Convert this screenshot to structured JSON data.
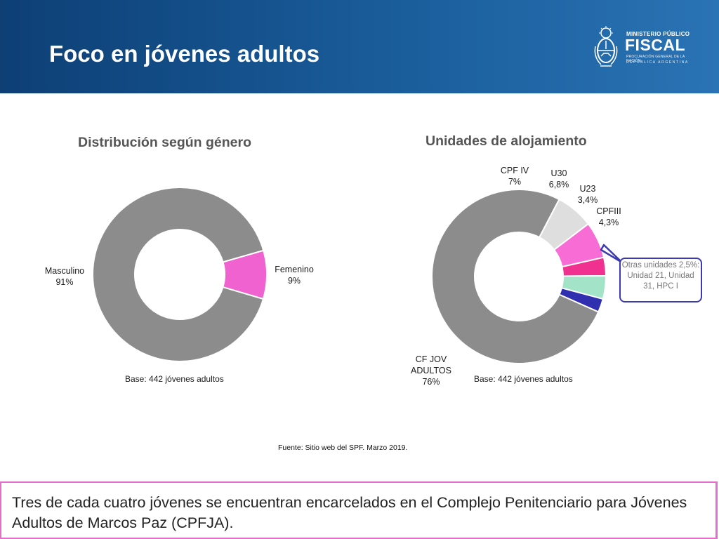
{
  "header": {
    "title": "Foco en jóvenes adultos"
  },
  "logo": {
    "line1": "MINISTERIO PÚBLICO",
    "line2": "FISCAL",
    "line3": "PROCURACIÓN GENERAL DE LA NACIÓN",
    "line4": "REPÚBLICA ARGENTINA"
  },
  "chart_data": [
    {
      "type": "pie",
      "title": "Distribución según género",
      "categories": [
        "Masculino",
        "Femenino"
      ],
      "values": [
        91,
        9
      ],
      "value_labels": [
        "91%",
        "9%"
      ],
      "colors": [
        "#8c8c8c",
        "#f062d0"
      ],
      "note": "Base: 442 jóvenes adultos"
    },
    {
      "type": "pie",
      "title": "Unidades de alojamiento",
      "categories": [
        "CF JOV ADULTOS",
        "CPF IV",
        "U30",
        "U23",
        "CPFIII",
        "Otras unidades"
      ],
      "values": [
        76,
        7,
        6.8,
        3.4,
        4.3,
        2.5
      ],
      "value_labels": [
        "76%",
        "7%",
        "6,8%",
        "3,4%",
        "4,3%",
        "2,5%"
      ],
      "colors": [
        "#8c8c8c",
        "#dedede",
        "#f86dd5",
        "#f0318f",
        "#a3e4c9",
        "#2f2fb0"
      ],
      "note": "Base: 442 jóvenes adultos",
      "callout": "Otras unidades 2,5%: Unidad 21, Unidad 31, HPC I"
    }
  ],
  "labels": {
    "masculino": "Masculino",
    "masculino_pct": "91%",
    "femenino": "Femenino",
    "femenino_pct": "9%",
    "cpfiv": "CPF IV",
    "cpfiv_pct": "7%",
    "u30": "U30",
    "u30_pct": "6,8%",
    "u23": "U23",
    "u23_pct": "3,4%",
    "cpfiii": "CPFIII",
    "cpfiii_pct": "4,3%",
    "cfjov_1": "CF JOV",
    "cfjov_2": "ADULTOS",
    "cfjov_pct": "76%"
  },
  "source": "Fuente: Sitio web del SPF. Marzo 2019.",
  "conclusion": "Tres de cada cuatro jóvenes se encuentran encarcelados en el Complejo Penitenciario para Jóvenes Adultos de Marcos Paz (CPFJA)."
}
